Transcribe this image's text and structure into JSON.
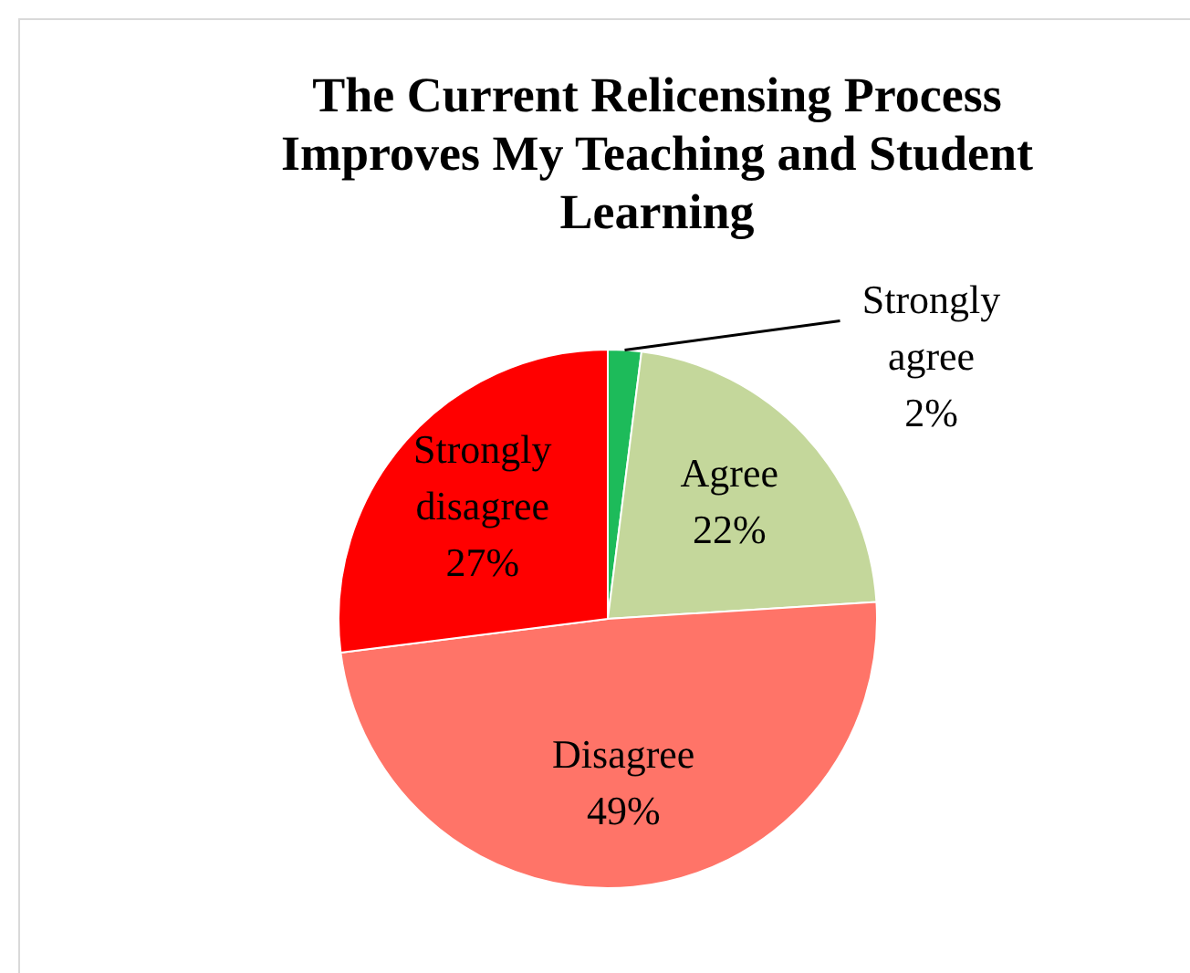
{
  "chart_data": {
    "type": "pie",
    "title": "The Current Relicensing Process Improves My Teaching and Student Learning",
    "categories": [
      "Strongly agree",
      "Agree",
      "Disagree",
      "Strongly disagree"
    ],
    "values": [
      2,
      22,
      49,
      27
    ],
    "colors": [
      "#1dbb5a",
      "#c4d79b",
      "#ff7468",
      "#ff0000"
    ],
    "value_labels": [
      "2%",
      "22%",
      "49%",
      "27%"
    ],
    "legend": false
  }
}
